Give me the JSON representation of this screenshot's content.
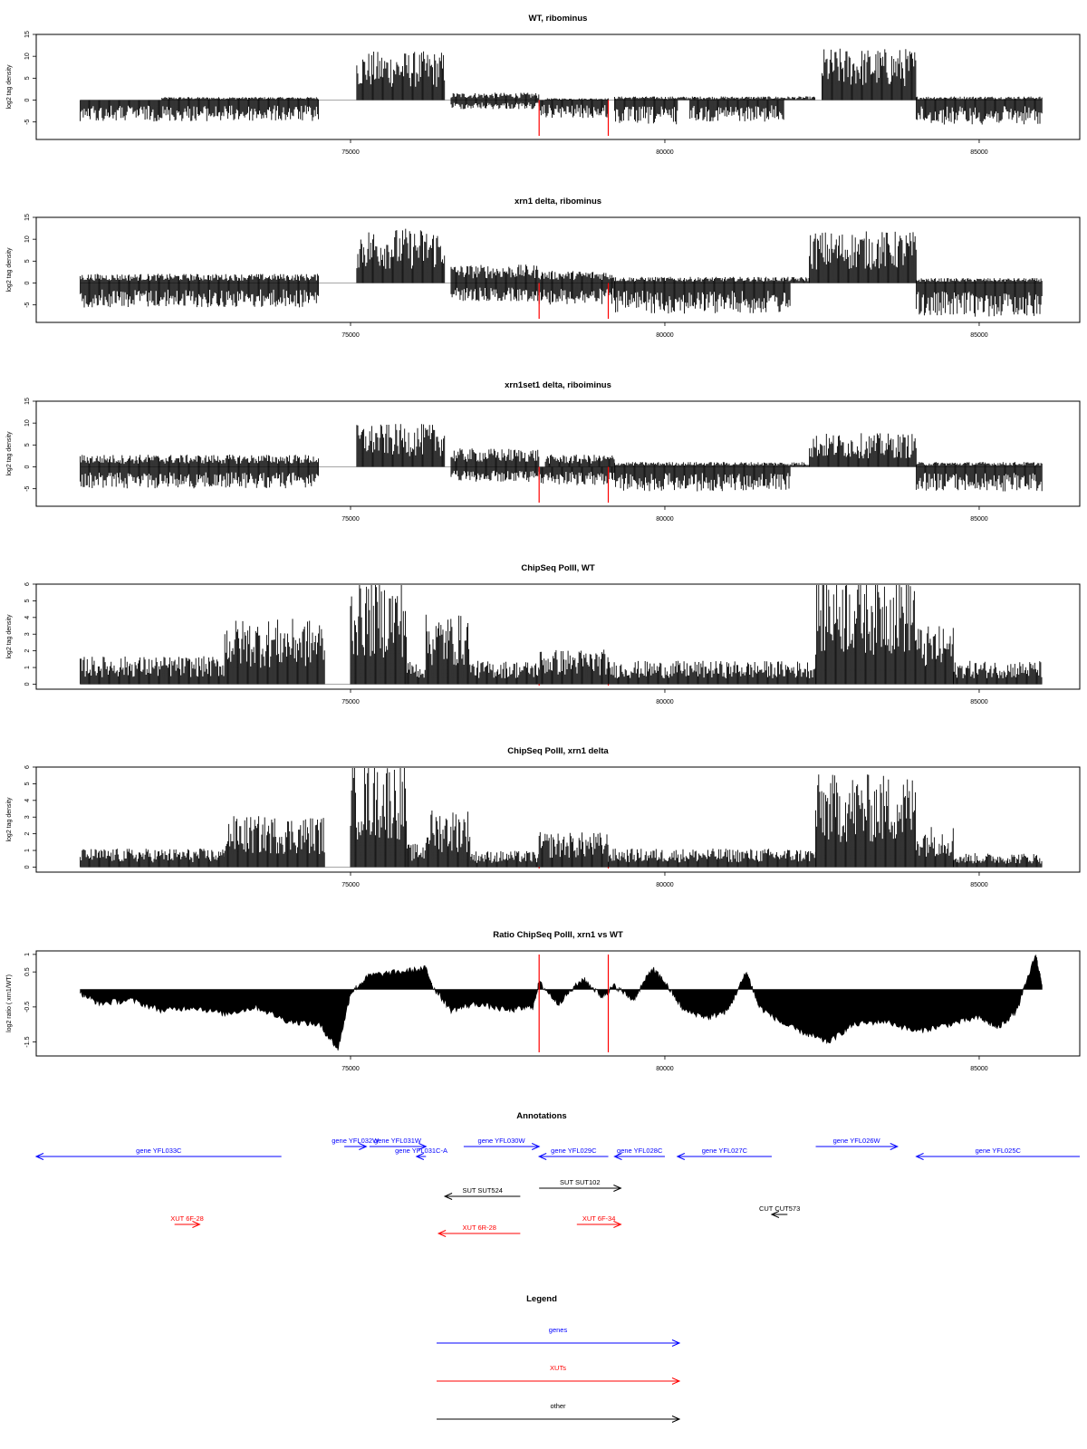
{
  "chart_data": [
    {
      "type": "bar",
      "title": "WT, ribominus",
      "ylabel": "log2 tag density",
      "ylim": [
        -9,
        15
      ],
      "yticks": [
        -5,
        0,
        5,
        10,
        15
      ],
      "xlim": [
        70000,
        86600
      ],
      "xticks": [
        75000,
        80000,
        85000
      ],
      "marker_lines_x": [
        78000,
        79100
      ],
      "marker_color": "#ff0000",
      "series": [
        {
          "sign": "positive",
          "segments": [
            {
              "x": [
                72000,
                74500
              ],
              "y": 0.5
            },
            {
              "x": [
                75100,
                76500
              ],
              "y": 8.0
            },
            {
              "x": [
                76600,
                78000
              ],
              "y": 1.2
            },
            {
              "x": [
                78100,
                79100
              ],
              "y": 0.3
            },
            {
              "x": [
                79200,
                82400
              ],
              "y": 0.6
            },
            {
              "x": [
                82500,
                84000
              ],
              "y": 8.5
            },
            {
              "x": [
                84000,
                86000
              ],
              "y": 0.6
            }
          ]
        },
        {
          "sign": "negative",
          "segments": [
            {
              "x": [
                70700,
                74500
              ],
              "y": -3.5
            },
            {
              "x": [
                76600,
                78000
              ],
              "y": -1.5
            },
            {
              "x": [
                78000,
                79100
              ],
              "y": -3.0
            },
            {
              "x": [
                79200,
                80200
              ],
              "y": -4.0
            },
            {
              "x": [
                80400,
                81900
              ],
              "y": -3.5
            },
            {
              "x": [
                84000,
                86000
              ],
              "y": -4.0
            }
          ]
        }
      ]
    },
    {
      "type": "bar",
      "title": "xrn1 delta, ribominus",
      "ylabel": "log2 tag density",
      "ylim": [
        -9,
        15
      ],
      "yticks": [
        -5,
        0,
        5,
        10,
        15
      ],
      "xlim": [
        70000,
        86600
      ],
      "xticks": [
        75000,
        80000,
        85000
      ],
      "marker_lines_x": [
        78000,
        79100
      ],
      "marker_color": "#ff0000",
      "series": [
        {
          "sign": "positive",
          "segments": [
            {
              "x": [
                70700,
                74500
              ],
              "y": 1.5
            },
            {
              "x": [
                75100,
                76500
              ],
              "y": 9.0
            },
            {
              "x": [
                76600,
                78000
              ],
              "y": 3.0
            },
            {
              "x": [
                78000,
                79200
              ],
              "y": 2.0
            },
            {
              "x": [
                79200,
                82300
              ],
              "y": 1.0
            },
            {
              "x": [
                82300,
                84000
              ],
              "y": 8.5
            },
            {
              "x": [
                84000,
                86000
              ],
              "y": 0.8
            }
          ]
        },
        {
          "sign": "negative",
          "segments": [
            {
              "x": [
                70700,
                74500
              ],
              "y": -4.0
            },
            {
              "x": [
                76600,
                78000
              ],
              "y": -3.0
            },
            {
              "x": [
                78000,
                79200
              ],
              "y": -3.5
            },
            {
              "x": [
                79200,
                82000
              ],
              "y": -5.0
            },
            {
              "x": [
                84000,
                86000
              ],
              "y": -5.5
            }
          ]
        }
      ]
    },
    {
      "type": "bar",
      "title": "xrn1set1 delta, riboiminus",
      "ylabel": "log2 tag density",
      "ylim": [
        -9,
        15
      ],
      "yticks": [
        -5,
        0,
        5,
        10,
        15
      ],
      "xlim": [
        70000,
        86600
      ],
      "xticks": [
        75000,
        80000,
        85000
      ],
      "marker_lines_x": [
        78000,
        79100
      ],
      "marker_color": "#ff0000",
      "series": [
        {
          "sign": "positive",
          "segments": [
            {
              "x": [
                70700,
                74500
              ],
              "y": 2.0
            },
            {
              "x": [
                75100,
                76500
              ],
              "y": 7.0
            },
            {
              "x": [
                76600,
                78000
              ],
              "y": 3.0
            },
            {
              "x": [
                78100,
                79200
              ],
              "y": 2.0
            },
            {
              "x": [
                79200,
                82300
              ],
              "y": 0.8
            },
            {
              "x": [
                82300,
                84000
              ],
              "y": 5.5
            },
            {
              "x": [
                84000,
                86000
              ],
              "y": 0.8
            }
          ]
        },
        {
          "sign": "negative",
          "segments": [
            {
              "x": [
                70700,
                74500
              ],
              "y": -3.5
            },
            {
              "x": [
                76600,
                78000
              ],
              "y": -2.5
            },
            {
              "x": [
                78000,
                79200
              ],
              "y": -3.0
            },
            {
              "x": [
                79200,
                82000
              ],
              "y": -4.0
            },
            {
              "x": [
                84000,
                86000
              ],
              "y": -4.0
            }
          ]
        }
      ]
    },
    {
      "type": "bar",
      "title": "ChipSeq PolII, WT",
      "ylabel": "log2 tag density",
      "ylim": [
        -0.3,
        6
      ],
      "yticks": [
        0,
        1,
        2,
        3,
        4,
        5,
        6
      ],
      "xlim": [
        70000,
        86600
      ],
      "xticks": [
        75000,
        80000,
        85000
      ],
      "marker_lines_x": [
        78000,
        79100
      ],
      "marker_color": "#ff0000",
      "series": [
        {
          "sign": "positive",
          "segments": [
            {
              "x": [
                70700,
                73000
              ],
              "y": 1.2
            },
            {
              "x": [
                73000,
                74600
              ],
              "y": 2.8
            },
            {
              "x": [
                75000,
                75900
              ],
              "y": 4.5
            },
            {
              "x": [
                75900,
                76200
              ],
              "y": 1.0
            },
            {
              "x": [
                76200,
                76900
              ],
              "y": 3.0
            },
            {
              "x": [
                76900,
                78000
              ],
              "y": 1.0
            },
            {
              "x": [
                78000,
                79100
              ],
              "y": 1.5
            },
            {
              "x": [
                79100,
                82400
              ],
              "y": 1.0
            },
            {
              "x": [
                82400,
                84000
              ],
              "y": 5.0
            },
            {
              "x": [
                84000,
                84600
              ],
              "y": 2.5
            },
            {
              "x": [
                84600,
                86000
              ],
              "y": 1.0
            }
          ]
        }
      ]
    },
    {
      "type": "bar",
      "title": "ChipSeq PolII, xrn1 delta",
      "ylabel": "log2 tag density",
      "ylim": [
        -0.3,
        6
      ],
      "yticks": [
        0,
        1,
        2,
        3,
        4,
        5,
        6
      ],
      "xlim": [
        70000,
        86600
      ],
      "xticks": [
        75000,
        80000,
        85000
      ],
      "marker_lines_x": [
        78000,
        79100
      ],
      "marker_color": "#ff0000",
      "series": [
        {
          "sign": "positive",
          "segments": [
            {
              "x": [
                70700,
                73000
              ],
              "y": 0.8
            },
            {
              "x": [
                73000,
                74600
              ],
              "y": 2.2
            },
            {
              "x": [
                75000,
                75900
              ],
              "y": 4.6
            },
            {
              "x": [
                75900,
                76200
              ],
              "y": 1.0
            },
            {
              "x": [
                76200,
                76900
              ],
              "y": 2.5
            },
            {
              "x": [
                76900,
                78000
              ],
              "y": 0.7
            },
            {
              "x": [
                78000,
                79100
              ],
              "y": 1.5
            },
            {
              "x": [
                79100,
                82400
              ],
              "y": 0.8
            },
            {
              "x": [
                82400,
                84000
              ],
              "y": 4.0
            },
            {
              "x": [
                84000,
                84600
              ],
              "y": 1.8
            },
            {
              "x": [
                84600,
                86000
              ],
              "y": 0.6
            }
          ]
        }
      ]
    },
    {
      "type": "area",
      "title": "Ratio ChipSeq PolII, xrn1 vs WT",
      "ylabel": "log2 ratio ( xrn1/WT)",
      "ylim": [
        -1.9,
        1.1
      ],
      "yticks": [
        -1.5,
        -0.5,
        0.5,
        1.0
      ],
      "xlim": [
        70000,
        86600
      ],
      "xticks": [
        75000,
        80000,
        85000
      ],
      "marker_lines_x": [
        78000,
        79100
      ],
      "marker_color": "#ff0000",
      "x": [
        70700,
        71000,
        71500,
        72000,
        72500,
        73000,
        73500,
        74000,
        74500,
        74800,
        75000,
        75300,
        75800,
        76200,
        76300,
        76600,
        77000,
        77500,
        77900,
        78000,
        78300,
        78700,
        79000,
        79200,
        79500,
        79800,
        80000,
        80300,
        80700,
        81000,
        81300,
        81500,
        81900,
        82300,
        82600,
        83000,
        83500,
        84000,
        84500,
        85000,
        85300,
        85600,
        85900,
        86000
      ],
      "values": [
        -0.1,
        -0.4,
        -0.3,
        -0.6,
        -0.5,
        -0.7,
        -0.5,
        -0.9,
        -1.0,
        -1.7,
        -0.1,
        0.4,
        0.5,
        0.6,
        0.1,
        -0.6,
        -0.4,
        -0.6,
        -0.5,
        0.2,
        -0.4,
        0.3,
        -0.2,
        0.1,
        -0.3,
        0.6,
        0.2,
        -0.6,
        -0.8,
        -0.6,
        0.5,
        -0.5,
        -1.0,
        -1.3,
        -1.5,
        -1.0,
        -0.9,
        -1.2,
        -1.0,
        -0.8,
        -1.1,
        -0.6,
        1.0,
        0.1
      ],
      "style": "filled from 0"
    }
  ],
  "annotations": {
    "title": "Annotations",
    "items": [
      {
        "label": "gene YFL033C",
        "color": "#0000ff",
        "x_start": 70000,
        "x_end": 73900,
        "direction": "left",
        "row": 1
      },
      {
        "label": "gene YFL032W",
        "color": "#0000ff",
        "x_start": 74900,
        "x_end": 75250,
        "direction": "right",
        "row": 0
      },
      {
        "label": "gene YFL031W",
        "color": "#0000ff",
        "x_start": 75300,
        "x_end": 76200,
        "direction": "right",
        "row": 0
      },
      {
        "label": "gene YFL031C-A",
        "color": "#0000ff",
        "x_start": 76050,
        "x_end": 76200,
        "direction": "left",
        "row": 1
      },
      {
        "label": "gene YFL030W",
        "color": "#0000ff",
        "x_start": 76800,
        "x_end": 78000,
        "direction": "right",
        "row": 0
      },
      {
        "label": "gene YFL029C",
        "color": "#0000ff",
        "x_start": 78000,
        "x_end": 79100,
        "direction": "left",
        "row": 1
      },
      {
        "label": "gene YFL028C",
        "color": "#0000ff",
        "x_start": 79200,
        "x_end": 80000,
        "direction": "left",
        "row": 1
      },
      {
        "label": "gene YFL027C",
        "color": "#0000ff",
        "x_start": 80200,
        "x_end": 81700,
        "direction": "left",
        "row": 1
      },
      {
        "label": "gene YFL026W",
        "color": "#0000ff",
        "x_start": 82400,
        "x_end": 83700,
        "direction": "right",
        "row": 0
      },
      {
        "label": "gene YFL025C",
        "color": "#0000ff",
        "x_start": 84000,
        "x_end": 86600,
        "direction": "left",
        "row": 1
      },
      {
        "label": "SUT SUT102",
        "color": "#000000",
        "x_start": 78000,
        "x_end": 79300,
        "direction": "right",
        "row": 2
      },
      {
        "label": "SUT SUT524",
        "color": "#000000",
        "x_start": 76500,
        "x_end": 77700,
        "direction": "left",
        "row": 3
      },
      {
        "label": "CUT CUT573",
        "color": "#000000",
        "x_start": 81700,
        "x_end": 81950,
        "direction": "left",
        "row": 4
      },
      {
        "label": "XUT 6F-28",
        "color": "#ff0000",
        "x_start": 72200,
        "x_end": 72600,
        "direction": "right",
        "row": 5
      },
      {
        "label": "XUT 6F-34",
        "color": "#ff0000",
        "x_start": 78600,
        "x_end": 79300,
        "direction": "right",
        "row": 5
      },
      {
        "label": "XUT 6R-28",
        "color": "#ff0000",
        "x_start": 76400,
        "x_end": 77700,
        "direction": "left",
        "row": 6
      }
    ]
  },
  "legend": {
    "title": "Legend",
    "items": [
      {
        "label": "genes",
        "color": "#0000ff"
      },
      {
        "label": "XUTs",
        "color": "#ff0000"
      },
      {
        "label": "other",
        "color": "#000000"
      }
    ]
  }
}
